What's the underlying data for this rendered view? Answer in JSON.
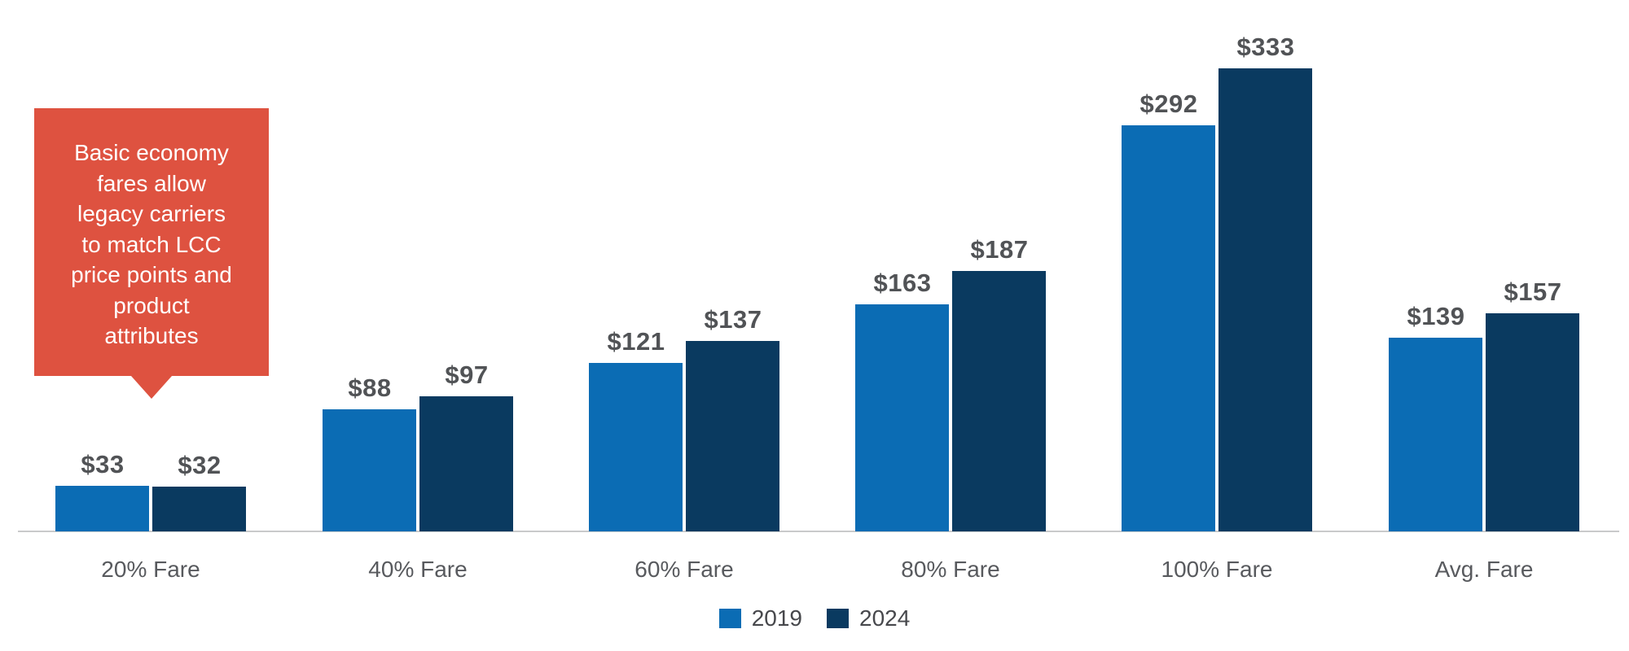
{
  "chart_data": {
    "type": "bar",
    "categories": [
      "20% Fare",
      "40% Fare",
      "60% Fare",
      "80% Fare",
      "100% Fare",
      "Avg. Fare"
    ],
    "series": [
      {
        "name": "2019",
        "color": "#0B6CB4",
        "values": [
          33,
          88,
          121,
          163,
          292,
          139
        ]
      },
      {
        "name": "2024",
        "color": "#0A3A60",
        "values": [
          32,
          97,
          137,
          187,
          333,
          157
        ]
      }
    ],
    "value_prefix": "$",
    "data_labels": [
      "$33",
      "$32",
      "$88",
      "$97",
      "$121",
      "$137",
      "$163",
      "$187",
      "$292",
      "$333",
      "$139",
      "$157"
    ],
    "xlabel": "",
    "ylabel": "",
    "ylim": [
      0,
      345
    ],
    "grid": false,
    "legend_position": "bottom-center"
  },
  "annotation": {
    "lines": [
      "Basic economy",
      "fares allow",
      "legacy carriers",
      "to match LCC",
      "price points and",
      "product",
      "attributes"
    ],
    "color": "#DE5240",
    "text_color": "#FFFFFF"
  },
  "colors": {
    "value_label": "#515356",
    "axis_label": "#585A5E",
    "legend_label": "#47484C",
    "baseline": "#C9CACB"
  }
}
